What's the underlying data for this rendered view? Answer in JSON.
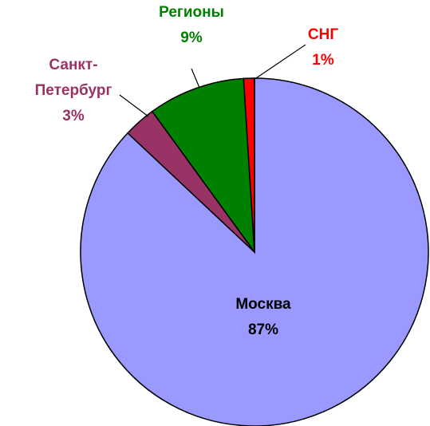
{
  "chart_data": {
    "type": "pie",
    "categories": [
      "Москва",
      "Санкт-Петербург",
      "Регионы",
      "СНГ"
    ],
    "values": [
      87,
      3,
      9,
      1
    ],
    "value_labels": [
      "87%",
      "3%",
      "9%",
      "1%"
    ],
    "colors": [
      "#9999ff",
      "#993366",
      "#008000",
      "#ff0000"
    ],
    "label_colors": [
      "#000000",
      "#993366",
      "#008000",
      "#ff0000"
    ]
  }
}
